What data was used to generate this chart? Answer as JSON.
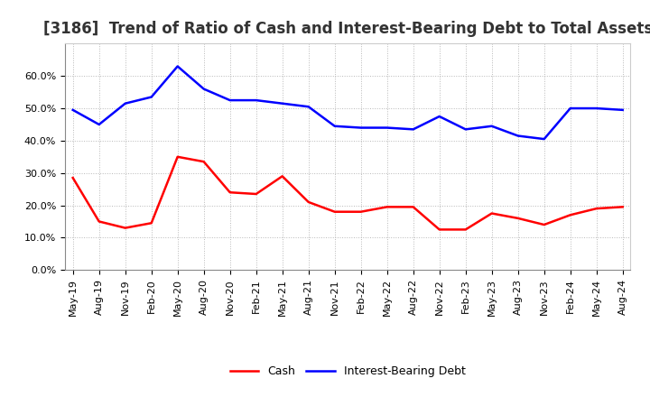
{
  "title": "[3186]  Trend of Ratio of Cash and Interest-Bearing Debt to Total Assets",
  "x_labels": [
    "May-19",
    "Aug-19",
    "Nov-19",
    "Feb-20",
    "May-20",
    "Aug-20",
    "Nov-20",
    "Feb-21",
    "May-21",
    "Aug-21",
    "Nov-21",
    "Feb-22",
    "May-22",
    "Aug-22",
    "Nov-22",
    "Feb-23",
    "May-23",
    "Aug-23",
    "Nov-23",
    "Feb-24",
    "May-24",
    "Aug-24"
  ],
  "cash": [
    28.5,
    15.0,
    13.0,
    14.5,
    35.0,
    33.5,
    24.0,
    23.5,
    29.0,
    21.0,
    18.0,
    18.0,
    19.5,
    19.5,
    12.5,
    12.5,
    17.5,
    16.0,
    14.0,
    17.0,
    19.0,
    19.5
  ],
  "ibd": [
    49.5,
    45.0,
    51.5,
    53.5,
    63.0,
    56.0,
    52.5,
    52.5,
    51.5,
    50.5,
    44.5,
    44.0,
    44.0,
    43.5,
    47.5,
    43.5,
    44.5,
    41.5,
    40.5,
    50.0,
    50.0,
    49.5
  ],
  "cash_color": "#ff0000",
  "ibd_color": "#0000ff",
  "ylim": [
    0,
    70
  ],
  "yticks": [
    0,
    10,
    20,
    30,
    40,
    50,
    60
  ],
  "background_color": "#ffffff",
  "grid_color": "#b0b0b0",
  "title_fontsize": 12,
  "tick_fontsize": 8,
  "legend_labels": [
    "Cash",
    "Interest-Bearing Debt"
  ],
  "linewidth": 1.8
}
